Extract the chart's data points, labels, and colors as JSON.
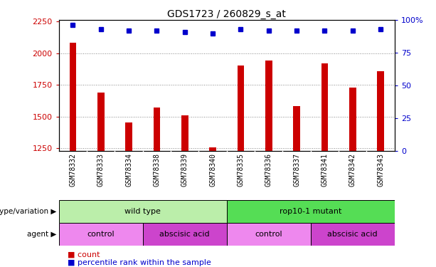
{
  "title": "GDS1723 / 260829_s_at",
  "samples": [
    "GSM78332",
    "GSM78333",
    "GSM78334",
    "GSM78338",
    "GSM78339",
    "GSM78340",
    "GSM78335",
    "GSM78336",
    "GSM78337",
    "GSM78341",
    "GSM78342",
    "GSM78343"
  ],
  "counts": [
    2080,
    1690,
    1455,
    1570,
    1510,
    1255,
    1900,
    1940,
    1580,
    1920,
    1730,
    1855
  ],
  "percentile_ranks": [
    96,
    93,
    92,
    92,
    91,
    90,
    93,
    92,
    92,
    92,
    92,
    93
  ],
  "ylim_left": [
    1230,
    2260
  ],
  "ylim_right": [
    0,
    100
  ],
  "yticks_left": [
    1250,
    1500,
    1750,
    2000,
    2250
  ],
  "yticks_right": [
    0,
    25,
    50,
    75,
    100
  ],
  "bar_color": "#cc0000",
  "dot_color": "#0000cc",
  "grid_color": "#888888",
  "xtick_bg": "#cccccc",
  "genotype_groups": [
    {
      "label": "wild type",
      "start": 0,
      "end": 6,
      "color": "#bbeeaa"
    },
    {
      "label": "rop10-1 mutant",
      "start": 6,
      "end": 12,
      "color": "#55dd55"
    }
  ],
  "agent_groups": [
    {
      "label": "control",
      "start": 0,
      "end": 3,
      "color": "#ee88ee"
    },
    {
      "label": "abscisic acid",
      "start": 3,
      "end": 6,
      "color": "#cc44cc"
    },
    {
      "label": "control",
      "start": 6,
      "end": 9,
      "color": "#ee88ee"
    },
    {
      "label": "abscisic acid",
      "start": 9,
      "end": 12,
      "color": "#cc44cc"
    }
  ],
  "left_label_color": "#cc0000",
  "right_label_color": "#0000cc",
  "genotype_label": "genotype/variation",
  "agent_label": "agent",
  "legend_count_label": "count",
  "legend_pct_label": "percentile rank within the sample",
  "bar_width": 0.25,
  "dot_size": 5
}
